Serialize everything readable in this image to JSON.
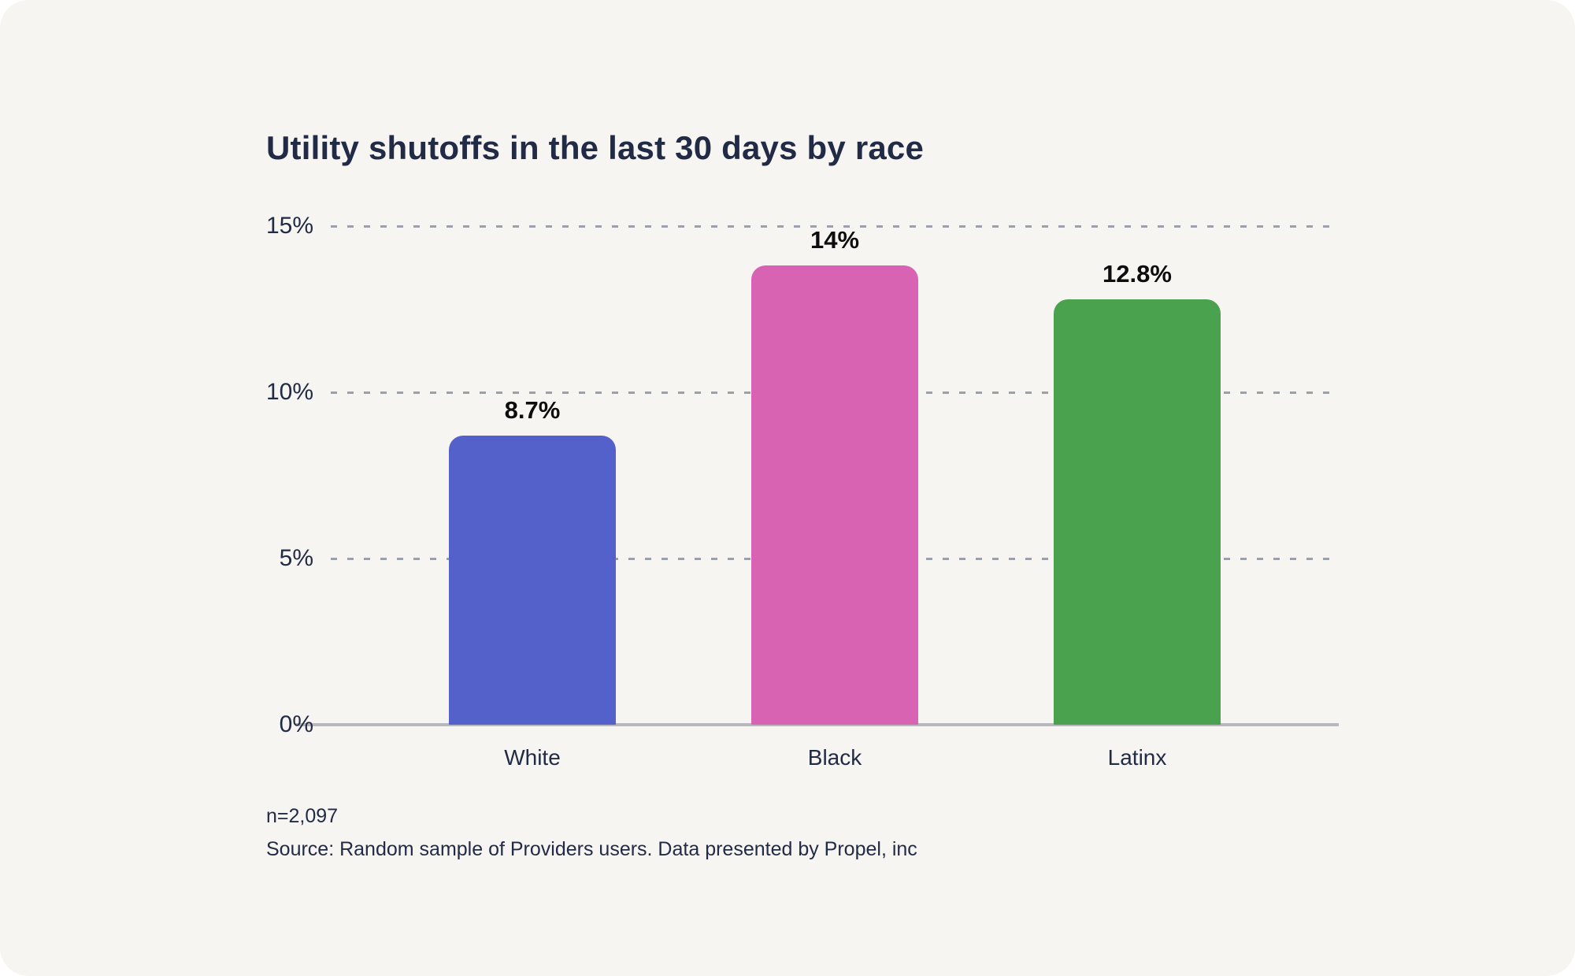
{
  "chart_data": {
    "type": "bar",
    "title": "Utility shutoffs in the last 30 days by race",
    "categories": [
      "White",
      "Black",
      "Latinx"
    ],
    "values": [
      8.7,
      14,
      12.8
    ],
    "value_labels": [
      "8.7%",
      "14%",
      "12.8%"
    ],
    "bar_colors": [
      "#5561cb",
      "#d763b2",
      "#4aa24f"
    ],
    "xlabel": "",
    "ylabel": "",
    "ylim": [
      0,
      15
    ],
    "yticks": [
      0,
      5,
      10,
      15
    ],
    "ytick_labels": [
      "0%",
      "5%",
      "10%",
      "15%"
    ],
    "grid": "horizontal-dashed",
    "legend": "none"
  },
  "footer": {
    "sample_size": "n=2,097",
    "source": "Source: Random sample of Providers users. Data presented by Propel, inc"
  },
  "colors": {
    "page_background": "#ffffff",
    "card_background": "#f7f5f2",
    "title_text": "#222b45",
    "axis_text": "#222b45",
    "category_text": "#222b45",
    "value_label_text": "#0d0d0d",
    "footer_text": "#222b45",
    "gridline_dashed": "#9ba1ab",
    "baseline_solid": "#b7b8bd",
    "bar_white": "#5561cb",
    "bar_black": "#d763b2",
    "bar_latinx": "#4aa24f"
  }
}
